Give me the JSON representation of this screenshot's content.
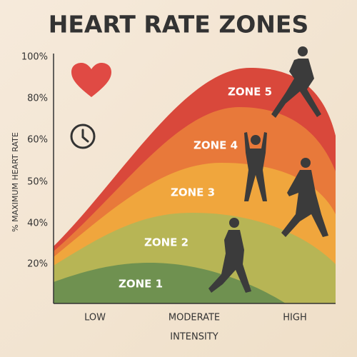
{
  "title": "HEART RATE ZONES",
  "y_axis": {
    "label": "% MAXIMUM HEART RATE",
    "ticks": [
      "100%",
      "80%",
      "60%",
      "50%",
      "40%",
      "20%"
    ]
  },
  "x_axis": {
    "title": "INTENSITY",
    "labels": [
      "LOW",
      "MODERATE",
      "HIGH"
    ]
  },
  "zones": [
    "ZONE 5",
    "ZONE 4",
    "ZONE 3",
    "ZONE 2",
    "ZONE 1"
  ]
}
